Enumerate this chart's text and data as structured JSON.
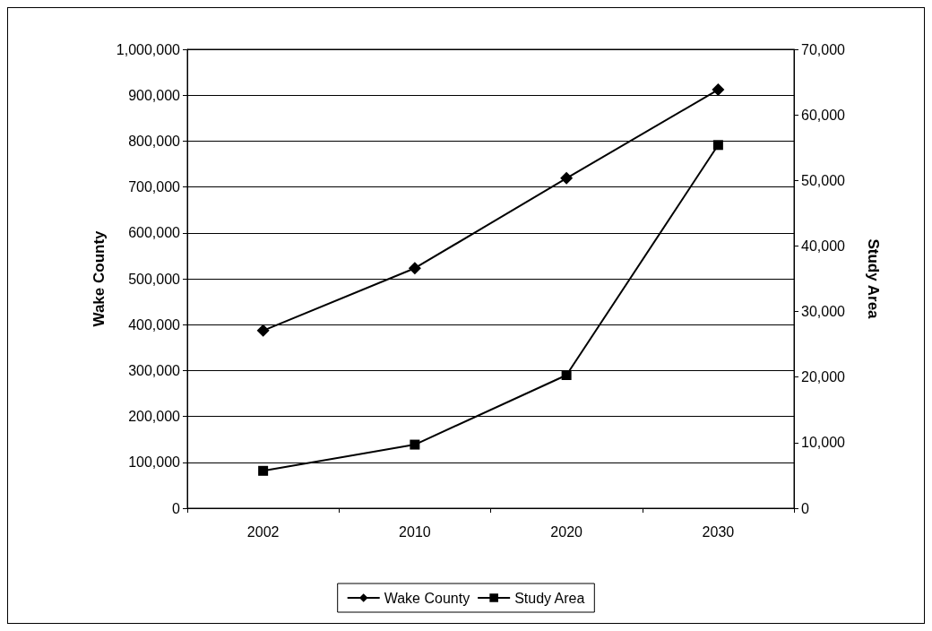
{
  "chart_data": {
    "type": "line",
    "categories": [
      "2002",
      "2010",
      "2020",
      "2030"
    ],
    "ylabel": "Wake County",
    "y2label": "Study Area",
    "series": [
      {
        "name": "Wake County",
        "color": "#000000",
        "marker": "diamond",
        "values": [
          387000,
          523000,
          719000,
          912000
        ]
      },
      {
        "name": "Study Area",
        "color": "#000000",
        "marker": "square",
        "axis": "y2",
        "values": [
          5700,
          9700,
          20300,
          55400
        ]
      }
    ],
    "ylim": [
      0,
      1000000
    ],
    "yticks": [
      0,
      {
        "value": 100000,
        "label": "100,000"
      },
      {
        "value": 200000,
        "label": "200,000"
      },
      {
        "value": 300000,
        "label": "300,000"
      },
      {
        "value": 400000,
        "label": "400,000"
      },
      {
        "value": 500000,
        "label": "500,000"
      },
      {
        "value": 600000,
        "label": "600,000"
      },
      {
        "value": 700000,
        "label": "700,000"
      },
      {
        "value": 800000,
        "label": "800,000"
      },
      {
        "value": 900000,
        "label": "900,000"
      },
      {
        "value": 1000000,
        "label": "1,000,000"
      }
    ],
    "y2lim": [
      0,
      70000
    ],
    "y2ticks": [
      0,
      {
        "value": 10000,
        "label": "10,000"
      },
      {
        "value": 20000,
        "label": "20,000"
      },
      {
        "value": 30000,
        "label": "30,000"
      },
      {
        "value": 40000,
        "label": "40,000"
      },
      {
        "value": 50000,
        "label": "50,000"
      },
      {
        "value": 60000,
        "label": "60,000"
      },
      {
        "value": 70000,
        "label": "70,000"
      }
    ],
    "grid": "y",
    "legend": "bottom",
    "line_style": "solid"
  }
}
